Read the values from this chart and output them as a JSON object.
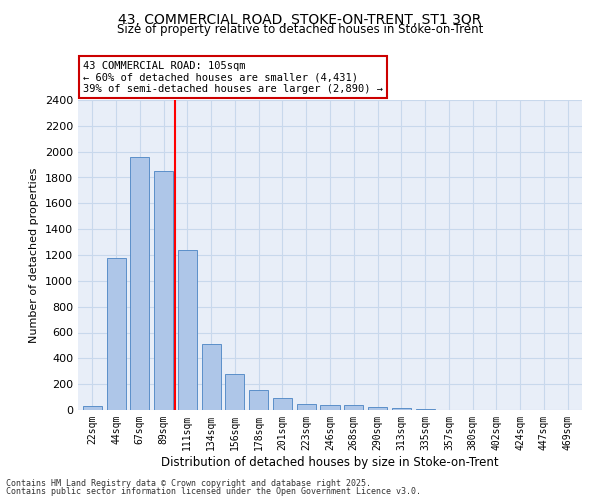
{
  "title_line1": "43, COMMERCIAL ROAD, STOKE-ON-TRENT, ST1 3QR",
  "title_line2": "Size of property relative to detached houses in Stoke-on-Trent",
  "xlabel": "Distribution of detached houses by size in Stoke-on-Trent",
  "ylabel": "Number of detached properties",
  "categories": [
    "22sqm",
    "44sqm",
    "67sqm",
    "89sqm",
    "111sqm",
    "134sqm",
    "156sqm",
    "178sqm",
    "201sqm",
    "223sqm",
    "246sqm",
    "268sqm",
    "290sqm",
    "313sqm",
    "335sqm",
    "357sqm",
    "380sqm",
    "402sqm",
    "424sqm",
    "447sqm",
    "469sqm"
  ],
  "values": [
    30,
    1175,
    1960,
    1850,
    1240,
    510,
    275,
    155,
    90,
    50,
    42,
    42,
    25,
    18,
    5,
    3,
    3,
    3,
    2,
    2,
    2
  ],
  "bar_color": "#aec6e8",
  "bar_edge_color": "#5b8fc9",
  "grid_color": "#c8d8ec",
  "bg_color": "#e8eef8",
  "red_line_x": 3.5,
  "annotation_text": "43 COMMERCIAL ROAD: 105sqm\n← 60% of detached houses are smaller (4,431)\n39% of semi-detached houses are larger (2,890) →",
  "annotation_box_color": "#ffffff",
  "annotation_box_edge": "#cc0000",
  "footer_line1": "Contains HM Land Registry data © Crown copyright and database right 2025.",
  "footer_line2": "Contains public sector information licensed under the Open Government Licence v3.0.",
  "ylim": [
    0,
    2400
  ],
  "yticks": [
    0,
    200,
    400,
    600,
    800,
    1000,
    1200,
    1400,
    1600,
    1800,
    2000,
    2200,
    2400
  ]
}
